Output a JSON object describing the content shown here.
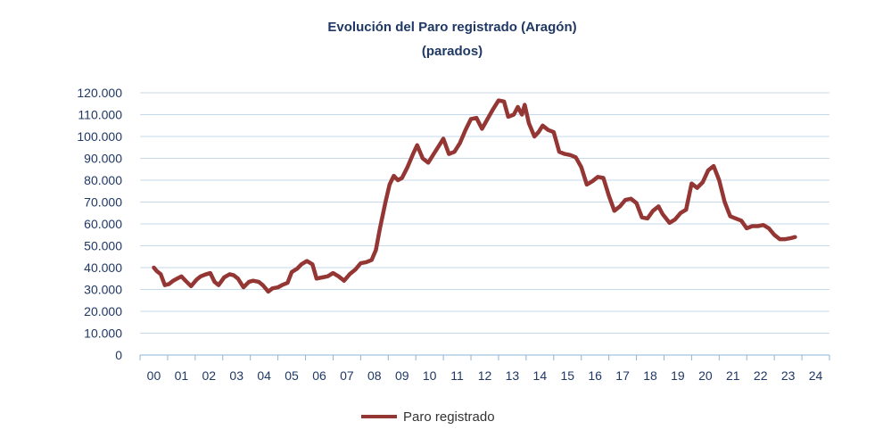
{
  "chart_data": {
    "type": "line",
    "title": "Evolución del Paro registrado (Aragón)",
    "subtitle": "(parados)",
    "xlabel": "",
    "ylabel": "",
    "ylim": [
      0,
      120000
    ],
    "grid": true,
    "legend_position": "bottom",
    "y_ticks": [
      {
        "value": 0,
        "label": "0"
      },
      {
        "value": 10000,
        "label": "10.000"
      },
      {
        "value": 20000,
        "label": "20.000"
      },
      {
        "value": 30000,
        "label": "30.000"
      },
      {
        "value": 40000,
        "label": "40.000"
      },
      {
        "value": 50000,
        "label": "50.000"
      },
      {
        "value": 60000,
        "label": "60.000"
      },
      {
        "value": 70000,
        "label": "70.000"
      },
      {
        "value": 80000,
        "label": "80.000"
      },
      {
        "value": 90000,
        "label": "90.000"
      },
      {
        "value": 100000,
        "label": "100.000"
      },
      {
        "value": 110000,
        "label": "110.000"
      },
      {
        "value": 120000,
        "label": "120.000"
      }
    ],
    "categories": [
      "00",
      "01",
      "02",
      "03",
      "04",
      "05",
      "06",
      "07",
      "08",
      "09",
      "10",
      "11",
      "12",
      "13",
      "14",
      "15",
      "16",
      "17",
      "18",
      "19",
      "20",
      "21",
      "22",
      "23",
      "24"
    ],
    "series": [
      {
        "name": "Paro registrado",
        "color": "#943634",
        "points": [
          [
            0.0,
            40000
          ],
          [
            0.1,
            38500
          ],
          [
            0.25,
            37000
          ],
          [
            0.4,
            32000
          ],
          [
            0.55,
            32500
          ],
          [
            0.7,
            34000
          ],
          [
            0.85,
            35000
          ],
          [
            1.0,
            36000
          ],
          [
            1.15,
            34000
          ],
          [
            1.35,
            31500
          ],
          [
            1.55,
            34500
          ],
          [
            1.7,
            36000
          ],
          [
            1.9,
            37000
          ],
          [
            2.05,
            37500
          ],
          [
            2.2,
            33500
          ],
          [
            2.35,
            32000
          ],
          [
            2.55,
            35500
          ],
          [
            2.75,
            37000
          ],
          [
            2.9,
            36500
          ],
          [
            3.05,
            35000
          ],
          [
            3.25,
            31000
          ],
          [
            3.45,
            33500
          ],
          [
            3.6,
            34000
          ],
          [
            3.8,
            33500
          ],
          [
            3.95,
            32000
          ],
          [
            4.15,
            29000
          ],
          [
            4.3,
            30500
          ],
          [
            4.5,
            31000
          ],
          [
            4.65,
            32000
          ],
          [
            4.85,
            33000
          ],
          [
            5.0,
            38000
          ],
          [
            5.2,
            39500
          ],
          [
            5.35,
            41500
          ],
          [
            5.55,
            43000
          ],
          [
            5.75,
            41500
          ],
          [
            5.9,
            35000
          ],
          [
            6.1,
            35500
          ],
          [
            6.3,
            36000
          ],
          [
            6.5,
            37500
          ],
          [
            6.7,
            36000
          ],
          [
            6.9,
            34000
          ],
          [
            7.1,
            37000
          ],
          [
            7.3,
            39000
          ],
          [
            7.5,
            42000
          ],
          [
            7.7,
            42500
          ],
          [
            7.9,
            43500
          ],
          [
            8.05,
            48000
          ],
          [
            8.2,
            58000
          ],
          [
            8.4,
            70000
          ],
          [
            8.55,
            78000
          ],
          [
            8.7,
            82000
          ],
          [
            8.85,
            80000
          ],
          [
            9.0,
            81000
          ],
          [
            9.2,
            86000
          ],
          [
            9.4,
            92000
          ],
          [
            9.55,
            96000
          ],
          [
            9.75,
            90000
          ],
          [
            9.95,
            88000
          ],
          [
            10.15,
            92000
          ],
          [
            10.35,
            96000
          ],
          [
            10.5,
            99000
          ],
          [
            10.7,
            92000
          ],
          [
            10.9,
            93000
          ],
          [
            11.1,
            97000
          ],
          [
            11.3,
            103000
          ],
          [
            11.5,
            108000
          ],
          [
            11.7,
            108500
          ],
          [
            11.9,
            103500
          ],
          [
            12.1,
            108000
          ],
          [
            12.3,
            112500
          ],
          [
            12.5,
            116500
          ],
          [
            12.7,
            116000
          ],
          [
            12.85,
            109000
          ],
          [
            13.05,
            110000
          ],
          [
            13.2,
            113500
          ],
          [
            13.35,
            110000
          ],
          [
            13.45,
            114500
          ],
          [
            13.6,
            106000
          ],
          [
            13.8,
            100000
          ],
          [
            13.95,
            102000
          ],
          [
            14.1,
            105000
          ],
          [
            14.3,
            103000
          ],
          [
            14.5,
            102000
          ],
          [
            14.7,
            93000
          ],
          [
            14.9,
            92000
          ],
          [
            15.1,
            91500
          ],
          [
            15.3,
            90500
          ],
          [
            15.5,
            86000
          ],
          [
            15.7,
            78000
          ],
          [
            15.9,
            79500
          ],
          [
            16.1,
            81500
          ],
          [
            16.3,
            81000
          ],
          [
            16.5,
            73000
          ],
          [
            16.7,
            66000
          ],
          [
            16.9,
            68000
          ],
          [
            17.1,
            71000
          ],
          [
            17.3,
            71500
          ],
          [
            17.5,
            69500
          ],
          [
            17.7,
            63000
          ],
          [
            17.9,
            62500
          ],
          [
            18.1,
            66000
          ],
          [
            18.3,
            68000
          ],
          [
            18.45,
            64500
          ],
          [
            18.7,
            60500
          ],
          [
            18.9,
            62000
          ],
          [
            19.1,
            65000
          ],
          [
            19.3,
            66500
          ],
          [
            19.5,
            78500
          ],
          [
            19.7,
            76500
          ],
          [
            19.9,
            79000
          ],
          [
            20.1,
            84500
          ],
          [
            20.3,
            86500
          ],
          [
            20.5,
            80000
          ],
          [
            20.7,
            70000
          ],
          [
            20.9,
            63500
          ],
          [
            21.1,
            62500
          ],
          [
            21.3,
            61500
          ],
          [
            21.5,
            58000
          ],
          [
            21.7,
            59000
          ],
          [
            21.9,
            59000
          ],
          [
            22.1,
            59500
          ],
          [
            22.3,
            58000
          ],
          [
            22.5,
            55000
          ],
          [
            22.7,
            53000
          ],
          [
            22.9,
            53000
          ],
          [
            23.1,
            53500
          ],
          [
            23.25,
            54000
          ]
        ]
      }
    ]
  }
}
